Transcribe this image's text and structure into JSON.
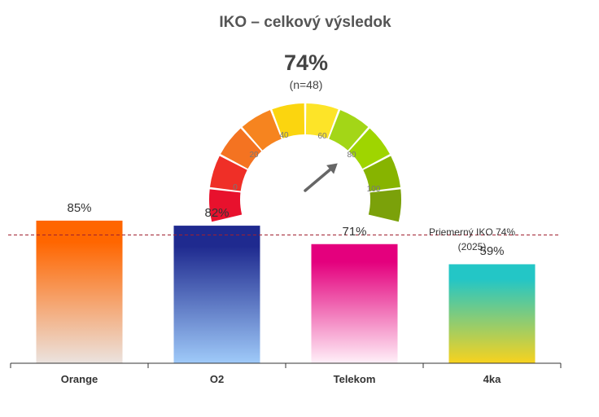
{
  "title": "IKO – celkový výsledok",
  "gauge": {
    "value_text": "74%",
    "n_text": "(n=48)",
    "value": 74,
    "min": 0,
    "max": 100,
    "ticks": [
      "0",
      "20",
      "40",
      "60",
      "80",
      "100"
    ],
    "segment_colors": [
      "#e8112d",
      "#ef2f27",
      "#f47321",
      "#f6841f",
      "#fbd50f",
      "#fde428",
      "#a3d617",
      "#9fd500",
      "#87b400",
      "#7ba10a"
    ]
  },
  "reference": {
    "label_line1": "Priemerný  IKO 74%",
    "label_line2": "(2025)",
    "value": 74,
    "color": "#a11f2f"
  },
  "chart_data": {
    "type": "bar",
    "categories": [
      "Orange",
      "O2",
      "Telekom",
      "4ka"
    ],
    "values": [
      85,
      82,
      71,
      59
    ],
    "value_labels": [
      "85%",
      "82%",
      "71%",
      "59%"
    ],
    "ylim": [
      0,
      100
    ],
    "grid": false,
    "bar_colors": [
      {
        "top": "#ff6600",
        "bottom": "#ebe3df"
      },
      {
        "top": "#1f2a8f",
        "bottom": "#9fcaf9"
      },
      {
        "top": "#e4007d",
        "bottom": "#fff0f8"
      },
      {
        "top": "#23c6c6",
        "bottom": "#f8d21e"
      }
    ]
  }
}
